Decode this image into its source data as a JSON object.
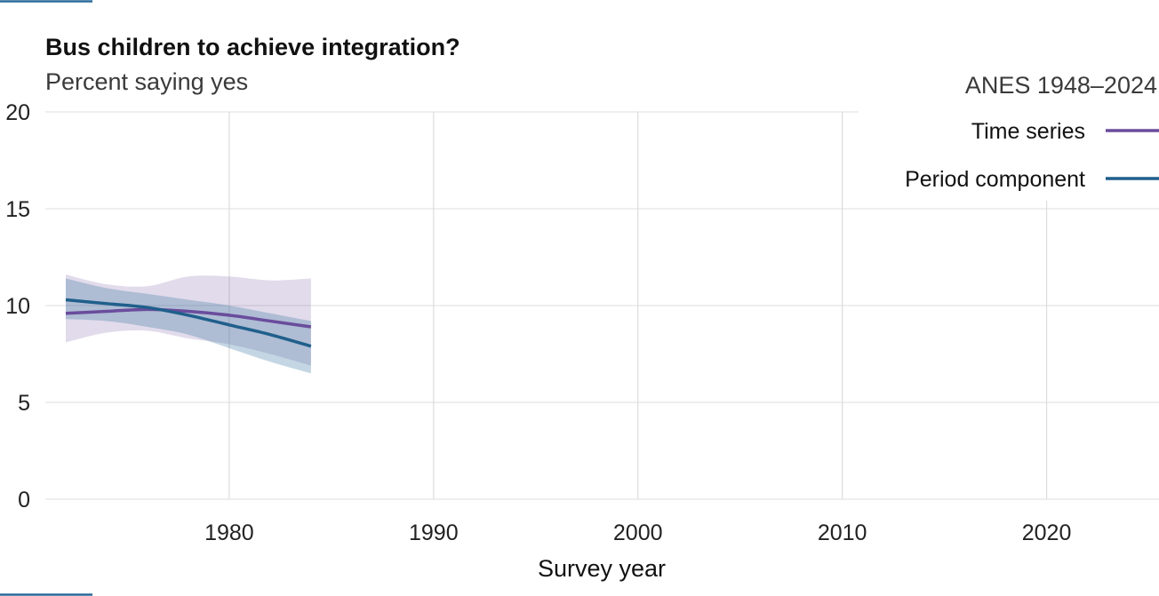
{
  "chart_data": {
    "type": "line",
    "title": "Bus children to achieve integration?",
    "subtitle": "Percent saying yes",
    "source_note": "ANES 1948–2024",
    "xlabel": "Survey year",
    "ylabel": "",
    "xlim": [
      1971,
      2025.5
    ],
    "ylim": [
      0,
      20
    ],
    "x_ticks": [
      1980,
      1990,
      2000,
      2010,
      2020
    ],
    "y_ticks": [
      0,
      5,
      10,
      15,
      20
    ],
    "grid": true,
    "legend_position": "top-right",
    "series": [
      {
        "name": "Time series",
        "color": "#6a4c9c",
        "band_color": "#6a4c9c",
        "x": [
          1972,
          1974,
          1976,
          1978,
          1980,
          1982,
          1984
        ],
        "y": [
          9.6,
          9.7,
          9.8,
          9.7,
          9.5,
          9.2,
          8.9
        ],
        "lower": [
          8.1,
          8.6,
          8.7,
          8.3,
          8.0,
          7.5,
          6.9
        ],
        "upper": [
          11.6,
          11.1,
          11.0,
          11.5,
          11.5,
          11.3,
          11.4
        ]
      },
      {
        "name": "Period component",
        "color": "#1f5f8b",
        "band_color": "#2a6a9a",
        "x": [
          1972,
          1974,
          1976,
          1978,
          1980,
          1982,
          1984
        ],
        "y": [
          10.3,
          10.1,
          9.9,
          9.5,
          9.0,
          8.5,
          7.9
        ],
        "lower": [
          9.3,
          9.2,
          8.9,
          8.5,
          7.8,
          7.1,
          6.5
        ],
        "upper": [
          11.4,
          10.9,
          10.6,
          10.3,
          10.0,
          9.6,
          9.2
        ]
      }
    ]
  }
}
